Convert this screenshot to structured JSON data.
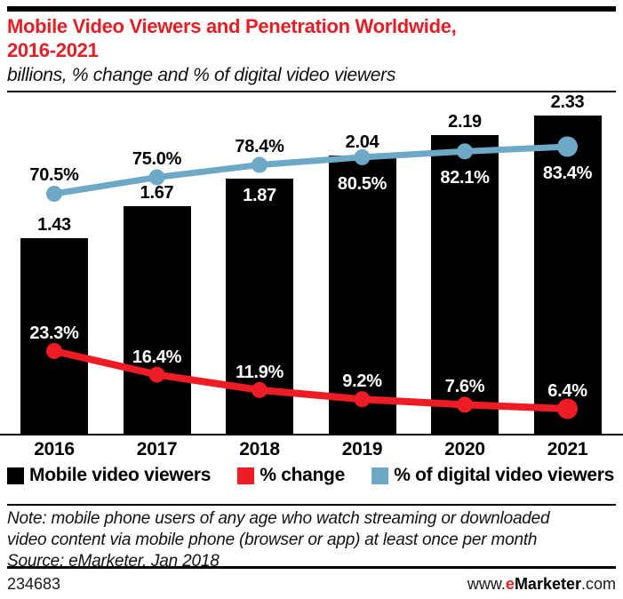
{
  "header": {
    "title_line1": "Mobile Video Viewers and Penetration Worldwide,",
    "title_line2": "2016-2021",
    "subtitle": "billions, % change and % of digital video viewers"
  },
  "colors": {
    "title_red": "#e41e24",
    "line_red": "#ee1c25",
    "line_blue": "#6da9c7",
    "bar_black": "#000000"
  },
  "chart_data": {
    "type": "bar+line combo",
    "title": "Mobile Video Viewers and Penetration Worldwide, 2016-2021",
    "subtitle": "billions, % change and % of digital video viewers",
    "categories": [
      "2016",
      "2017",
      "2018",
      "2019",
      "2020",
      "2021"
    ],
    "grid": false,
    "legend_position": "bottom",
    "series": [
      {
        "name": "Mobile video viewers",
        "type": "bar",
        "unit": "billions",
        "color": "#000000",
        "values": [
          1.43,
          1.67,
          1.87,
          2.04,
          2.19,
          2.33
        ],
        "labels": [
          "1.43",
          "1.67",
          "1.87",
          "2.04",
          "2.19",
          "2.33"
        ],
        "label_inside": [
          false,
          false,
          true,
          false,
          false,
          false
        ]
      },
      {
        "name": "% change",
        "type": "line",
        "unit": "% change",
        "color": "#ee1c25",
        "values": [
          23.3,
          16.4,
          11.9,
          9.2,
          7.6,
          6.4
        ],
        "labels": [
          "23.3%",
          "16.4%",
          "11.9%",
          "9.2%",
          "7.6%",
          "6.4%"
        ],
        "label_inside": [
          false,
          false,
          false,
          false,
          false,
          false
        ]
      },
      {
        "name": "% of digital video viewers",
        "type": "line",
        "unit": "% of digital video viewers",
        "color": "#6da9c7",
        "values": [
          70.5,
          75.0,
          78.4,
          80.5,
          82.1,
          83.4
        ],
        "labels": [
          "70.5%",
          "75.0%",
          "78.4%",
          "80.5%",
          "82.1%",
          "83.4%"
        ],
        "label_inside": [
          false,
          false,
          false,
          true,
          true,
          true
        ]
      }
    ]
  },
  "legend": {
    "items": [
      {
        "label": "Mobile video viewers",
        "color": "#000000"
      },
      {
        "label": "% change",
        "color": "#ee1c25"
      },
      {
        "label": "% of digital video viewers",
        "color": "#6da9c7"
      }
    ]
  },
  "footer": {
    "note_line1": "Note: mobile phone users of any age who watch streaming or downloaded",
    "note_line2": "video content via mobile phone (browser or app) at least once per month",
    "source": "Source: eMarketer, Jan 2018",
    "chart_id": "234683",
    "site_prefix": "www.",
    "site_e": "e",
    "site_name": "Marketer",
    "site_suffix": ".com"
  }
}
